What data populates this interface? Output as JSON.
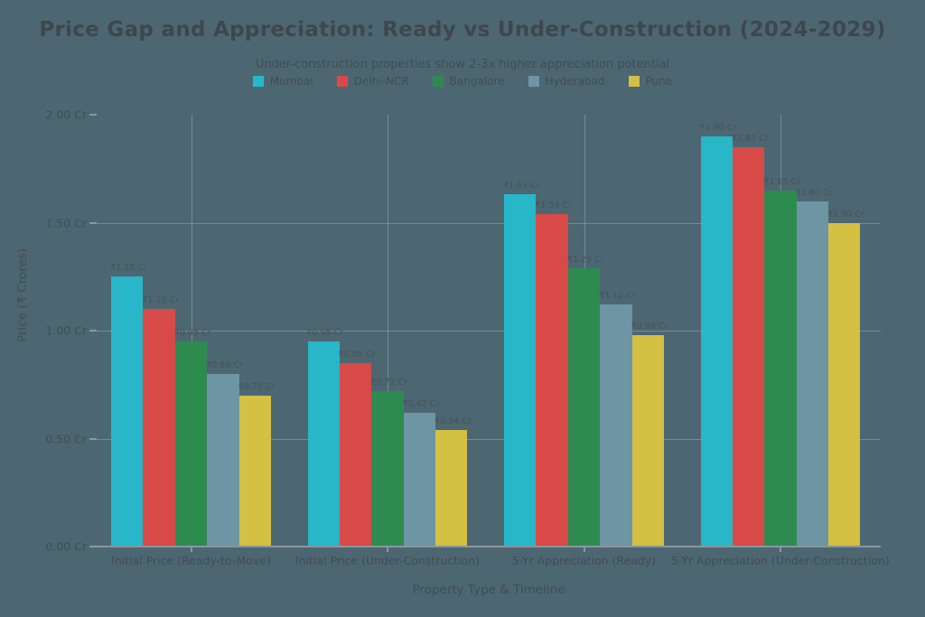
{
  "colors": {
    "background": "#4d6772",
    "text": "#424c53",
    "title_text": "#3e474d",
    "grid": "rgba(155,168,174,0.55)",
    "axis": "#8b979d"
  },
  "chart_data": {
    "type": "bar",
    "title": "Price Gap and Appreciation: Ready vs Under-Construction (2024-2029)",
    "subtitle": "Under-construction properties show 2-3x higher appreciation potential",
    "xlabel": "Property Type & Timeline",
    "ylabel": "Price (₹ Crores)",
    "ylim": [
      0,
      2.0
    ],
    "grid": true,
    "legend_position": "top",
    "yticks": [
      {
        "value": 2.0,
        "label": "2.00 Cr"
      },
      {
        "value": 1.5,
        "label": "1.50 Cr"
      },
      {
        "value": 1.0,
        "label": "1.00 Cr"
      },
      {
        "value": 0.5,
        "label": "0.50 Cr"
      },
      {
        "value": 0.0,
        "label": "0.00 Cr"
      }
    ],
    "categories": [
      "Initial Price (Ready-to-Move)",
      "Initial Price (Under-Construction)",
      "5-Yr Appreciation (Ready)",
      "5-Yr Appreciation (Under-Construction)"
    ],
    "series": [
      {
        "name": "Mumbai",
        "color": "#27b7c8",
        "values": [
          1.25,
          0.95,
          1.63,
          1.9
        ],
        "labels": [
          "₹1.25 Cr",
          "₹0.95 Cr",
          "₹1.63 Cr",
          "₹1.90 Cr"
        ]
      },
      {
        "name": "Delhi-NCR",
        "color": "#d84a48",
        "values": [
          1.1,
          0.85,
          1.54,
          1.85
        ],
        "labels": [
          "₹1.10 Cr",
          "₹0.85 Cr",
          "₹1.54 Cr",
          "₹1.85 Cr"
        ]
      },
      {
        "name": "Bangalore",
        "color": "#2e8b50",
        "values": [
          0.95,
          0.72,
          1.29,
          1.65
        ],
        "labels": [
          "₹0.95 Cr",
          "₹0.72 Cr",
          "₹1.29 Cr",
          "₹1.65 Cr"
        ]
      },
      {
        "name": "Hyderabad",
        "color": "#6d95a4",
        "values": [
          0.8,
          0.62,
          1.12,
          1.6
        ],
        "labels": [
          "₹0.80 Cr",
          "₹0.62 Cr",
          "₹1.12 Cr",
          "₹1.60 Cr"
        ]
      },
      {
        "name": "Pune",
        "color": "#d4c042",
        "values": [
          0.7,
          0.54,
          0.98,
          1.5
        ],
        "labels": [
          "₹0.70 Cr",
          "₹0.54 Cr",
          "₹0.98 Cr",
          "₹1.50 Cr"
        ]
      }
    ]
  }
}
